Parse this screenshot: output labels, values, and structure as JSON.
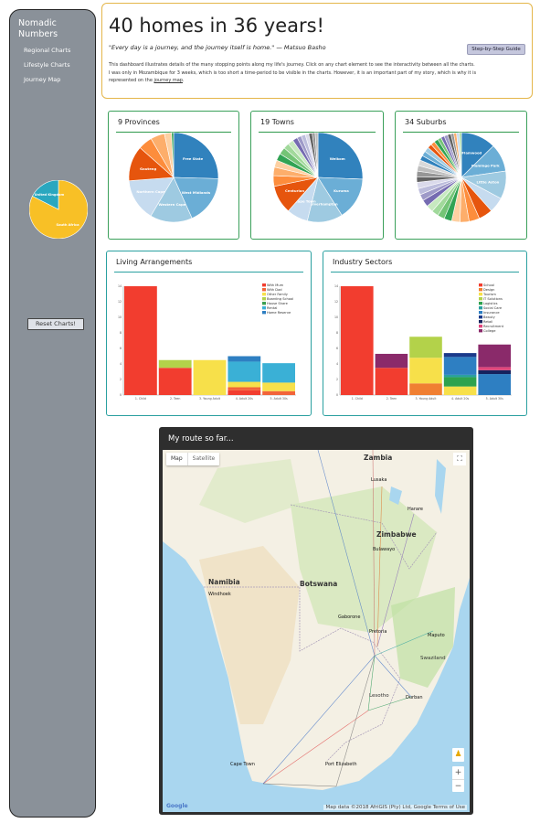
{
  "sidebar": {
    "title": "Nomadic Numbers",
    "links": [
      "Regional Charts",
      "Lifestyle Charts",
      "Journey Map"
    ],
    "reset_label": "Reset Charts!",
    "country_pie": {
      "slices": [
        {
          "label": "South Africa",
          "value": 33,
          "color": "#f8c026"
        },
        {
          "label": "United Kingdom",
          "value": 7,
          "color": "#2aa7bf"
        }
      ]
    }
  },
  "header": {
    "title": "40 homes in 36 years!",
    "quote": "\"Every day is a journey, and the journey itself is home.\" — Matsuo Basho",
    "guide_label": "Step-by-Step Guide",
    "desc_line1": "This dashboard illustrates details of the many stopping points along my life's journey. Click on any chart element to see the interactivity between all the charts.",
    "desc_line2": "I was only in Mozambique for 3 weeks, which is too short a time-period to be visible in the charts. However, it is an important part of my story, which is why it is",
    "desc_line3_pre": "represented on the",
    "desc_link": "journey map",
    "desc_line3_post": "."
  },
  "provinces": {
    "title": "9 Provinces",
    "slices": [
      {
        "label": "Free State",
        "value": 10,
        "color": "#3182bd"
      },
      {
        "label": "West Midlands",
        "value": 7,
        "color": "#6baed6"
      },
      {
        "label": "Western Cape",
        "value": 6,
        "color": "#9ecae1"
      },
      {
        "label": "Northern Cape",
        "value": 6,
        "color": "#c6dbef"
      },
      {
        "label": "Gauteng",
        "value": 5,
        "color": "#e6550d"
      },
      {
        "label": "",
        "value": 2,
        "color": "#fd8d3c"
      },
      {
        "label": "",
        "value": 2,
        "color": "#fdae6b"
      },
      {
        "label": "",
        "value": 1,
        "color": "#fdd0a2"
      },
      {
        "label": "",
        "value": 0.3,
        "color": "#31a354"
      }
    ]
  },
  "towns": {
    "title": "19 Towns",
    "slices": [
      {
        "label": "Welkom",
        "value": 10,
        "color": "#3182bd"
      },
      {
        "label": "Kuruma",
        "value": 6,
        "color": "#6baed6"
      },
      {
        "label": "Wolverhampton",
        "value": 5,
        "color": "#9ecae1"
      },
      {
        "label": "Cape Town",
        "value": 3,
        "color": "#c6dbef"
      },
      {
        "label": "Centurion",
        "value": 4,
        "color": "#e6550d"
      },
      {
        "label": "",
        "value": 1.5,
        "color": "#fd8d3c"
      },
      {
        "label": "",
        "value": 1.2,
        "color": "#fdae6b"
      },
      {
        "label": "",
        "value": 1,
        "color": "#fdd0a2"
      },
      {
        "label": "",
        "value": 1,
        "color": "#31a354"
      },
      {
        "label": "",
        "value": 1,
        "color": "#74c476"
      },
      {
        "label": "",
        "value": 0.8,
        "color": "#a1d99b"
      },
      {
        "label": "",
        "value": 0.8,
        "color": "#c7e9c0"
      },
      {
        "label": "",
        "value": 0.7,
        "color": "#756bb1"
      },
      {
        "label": "",
        "value": 0.6,
        "color": "#9e9ac8"
      },
      {
        "label": "",
        "value": 0.6,
        "color": "#bcbddc"
      },
      {
        "label": "",
        "value": 0.5,
        "color": "#dadaeb"
      },
      {
        "label": "",
        "value": 0.5,
        "color": "#636363"
      },
      {
        "label": "",
        "value": 0.4,
        "color": "#969696"
      },
      {
        "label": "",
        "value": 0.4,
        "color": "#bdbdbd"
      }
    ]
  },
  "suburbs": {
    "title": "34 Suburbs",
    "slices": [
      {
        "label": "Flamwood",
        "value": 5,
        "color": "#3182bd"
      },
      {
        "label": "Flamingo Park",
        "value": 4,
        "color": "#6baed6"
      },
      {
        "label": "Little Aston",
        "value": 4,
        "color": "#9ecae1"
      },
      {
        "label": "",
        "value": 2.2,
        "color": "#c6dbef"
      },
      {
        "label": "",
        "value": 2,
        "color": "#e6550d"
      },
      {
        "label": "",
        "value": 1.5,
        "color": "#fd8d3c"
      },
      {
        "label": "",
        "value": 1.3,
        "color": "#fdae6b"
      },
      {
        "label": "",
        "value": 1.2,
        "color": "#fdd0a2"
      },
      {
        "label": "",
        "value": 1.1,
        "color": "#31a354"
      },
      {
        "label": "",
        "value": 1,
        "color": "#74c476"
      },
      {
        "label": "",
        "value": 1,
        "color": "#a1d99b"
      },
      {
        "label": "",
        "value": 1,
        "color": "#c7e9c0"
      },
      {
        "label": "",
        "value": 1,
        "color": "#756bb1"
      },
      {
        "label": "",
        "value": 0.9,
        "color": "#9e9ac8"
      },
      {
        "label": "",
        "value": 0.9,
        "color": "#bcbddc"
      },
      {
        "label": "",
        "value": 0.9,
        "color": "#dadaeb"
      },
      {
        "label": "",
        "value": 0.8,
        "color": "#636363"
      },
      {
        "label": "",
        "value": 0.8,
        "color": "#969696"
      },
      {
        "label": "",
        "value": 0.8,
        "color": "#bdbdbd"
      },
      {
        "label": "",
        "value": 0.8,
        "color": "#d9d9d9"
      },
      {
        "label": "",
        "value": 0.7,
        "color": "#3182bd"
      },
      {
        "label": "",
        "value": 0.7,
        "color": "#6baed6"
      },
      {
        "label": "",
        "value": 0.7,
        "color": "#9ecae1"
      },
      {
        "label": "",
        "value": 0.6,
        "color": "#e6550d"
      },
      {
        "label": "",
        "value": 0.6,
        "color": "#fd8d3c"
      },
      {
        "label": "",
        "value": 0.6,
        "color": "#31a354"
      },
      {
        "label": "",
        "value": 0.5,
        "color": "#74c476"
      },
      {
        "label": "",
        "value": 0.5,
        "color": "#756bb1"
      },
      {
        "label": "",
        "value": 0.5,
        "color": "#9e9ac8"
      },
      {
        "label": "",
        "value": 0.5,
        "color": "#636363"
      },
      {
        "label": "",
        "value": 0.4,
        "color": "#969696"
      },
      {
        "label": "",
        "value": 0.4,
        "color": "#fdae6b"
      },
      {
        "label": "",
        "value": 0.4,
        "color": "#c6dbef"
      },
      {
        "label": "",
        "value": 0.3,
        "color": "#a1d99b"
      }
    ]
  },
  "living": {
    "title": "Living Arrangements",
    "chart_data": {
      "type": "bar",
      "stacked": true,
      "categories": [
        "1. Child",
        "2. Teen",
        "3. Young Adult",
        "4. Adult 20s",
        "5. Adult 30s"
      ],
      "ylim": [
        0,
        14
      ],
      "yticks": [
        0,
        2,
        4,
        6,
        8,
        10,
        12,
        14
      ],
      "series": [
        {
          "name": "With Mum",
          "color": "#f23d2f",
          "values": [
            14,
            3.5,
            0,
            0.6,
            0
          ]
        },
        {
          "name": "With Dad",
          "color": "#f2643a",
          "values": [
            0,
            0,
            0,
            0.4,
            0.5
          ]
        },
        {
          "name": "Other Family",
          "color": "#f7e04a",
          "values": [
            0,
            0,
            4.5,
            0.7,
            1.1
          ]
        },
        {
          "name": "Boarding School",
          "color": "#b3d24a",
          "values": [
            0,
            1,
            0,
            0,
            0
          ]
        },
        {
          "name": "House Share",
          "color": "#3aa052",
          "values": [
            0,
            0,
            0,
            0,
            0
          ]
        },
        {
          "name": "Rental",
          "color": "#3ab0d6",
          "values": [
            0,
            0,
            0,
            2.6,
            2.5
          ]
        },
        {
          "name": "Home Reserve",
          "color": "#2e7fc2",
          "values": [
            0,
            0,
            0,
            0.7,
            0
          ]
        }
      ]
    }
  },
  "industry": {
    "title": "Industry Sectors",
    "chart_data": {
      "type": "bar",
      "stacked": true,
      "categories": [
        "1. Child",
        "2. Teen",
        "3. Young Adult",
        "4. Adult 20s",
        "5. Adult 30s"
      ],
      "ylim": [
        0,
        14
      ],
      "yticks": [
        0,
        2,
        4,
        6,
        8,
        10,
        12,
        14
      ],
      "series": [
        {
          "name": "School",
          "color": "#f23d2f",
          "values": [
            14,
            3.5,
            0,
            0,
            0
          ]
        },
        {
          "name": "Design",
          "color": "#f07f32",
          "values": [
            0,
            0,
            1.5,
            0,
            0
          ]
        },
        {
          "name": "Tourism",
          "color": "#f7e04a",
          "values": [
            0,
            0,
            3.3,
            1.1,
            0
          ]
        },
        {
          "name": "IT Solutions",
          "color": "#b3d24a",
          "values": [
            0,
            0,
            2.7,
            0,
            0
          ]
        },
        {
          "name": "Logistics",
          "color": "#2ea24e",
          "values": [
            0,
            0,
            0,
            1.2,
            0
          ]
        },
        {
          "name": "Social Care",
          "color": "#2aa0a0",
          "values": [
            0,
            0,
            0,
            0.3,
            0
          ]
        },
        {
          "name": "Insurance",
          "color": "#2e7fc2",
          "values": [
            0,
            0,
            0,
            2.3,
            2.7
          ]
        },
        {
          "name": "Beauty",
          "color": "#1b3a8a",
          "values": [
            0,
            0,
            0,
            0.5,
            0
          ]
        },
        {
          "name": "Retail",
          "color": "#15225e",
          "values": [
            0,
            0,
            0,
            0,
            0.5
          ]
        },
        {
          "name": "Recruitment",
          "color": "#e0457a",
          "values": [
            0,
            0,
            0,
            0,
            0.4
          ]
        },
        {
          "name": "College",
          "color": "#8a2a6a",
          "values": [
            0,
            1.8,
            0,
            0,
            2.9
          ]
        }
      ]
    }
  },
  "map": {
    "title": "My route so far...",
    "map_label": "Map",
    "satellite_label": "Satellite",
    "attribution": "Map data ©2018 AfriGIS (Pty) Ltd, Google  Terms of Use",
    "google": "Google",
    "labels": {
      "zambia": "Zambia",
      "lusaka": "Lusaka",
      "zimbabwe": "Zimbabwe",
      "harare": "Harare",
      "bulawayo": "Bulawayo",
      "namibia": "Namibia",
      "botswana": "Botswana",
      "windhoek": "Windhoek",
      "gaborone": "Gaborone",
      "pretoria": "Pretoria",
      "maputo": "Maputo",
      "swaziland": "Swaziland",
      "lesotho": "Lesotho",
      "durban": "Durban",
      "capetown": "Cape Town",
      "portelizabeth": "Port Elizabeth"
    }
  }
}
